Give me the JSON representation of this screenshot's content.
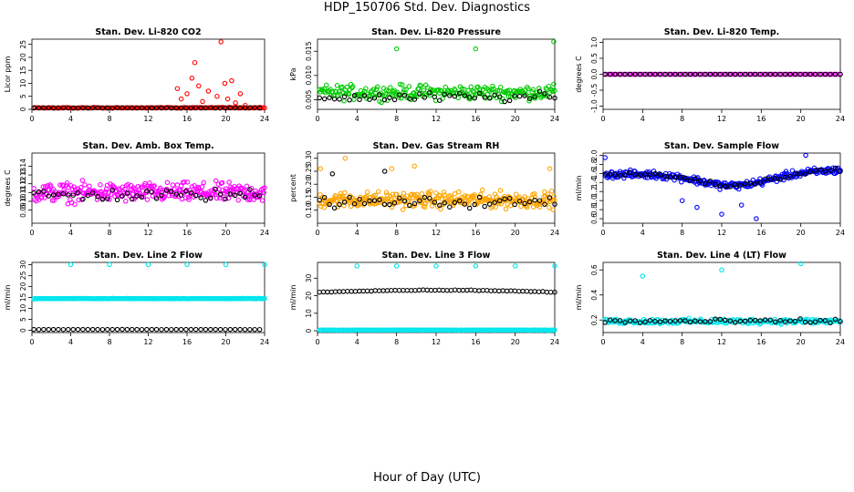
{
  "page": {
    "title": "HDP_150706  Std. Dev. Diagnostics",
    "x_title": "Hour of Day (UTC)"
  },
  "colors": {
    "red": "#ff0000",
    "green": "#00cc00",
    "magenta": "#ff00ff",
    "blue": "#0000ff",
    "orange": "#ffa500",
    "cyan": "#00e5ee",
    "black": "#000000"
  },
  "chart_data": [
    {
      "type": "scatter",
      "title": "Stan. Dev. Li-820 CO2",
      "ylabel": "Licor ppm",
      "xlim": [
        0,
        24
      ],
      "ylim": [
        0,
        27
      ],
      "x_ticks": [
        0,
        4,
        8,
        12,
        16,
        20,
        24
      ],
      "y_ticks": [
        0,
        5,
        10,
        15,
        20,
        25
      ],
      "y_tick_labels": [
        "0",
        "5",
        "10",
        "15",
        "20",
        "25"
      ],
      "series": [
        {
          "color": "red",
          "pattern": "baseline",
          "base": 0.5,
          "noise": 0.35,
          "count": 150,
          "spikes": [
            [
              15.0,
              8
            ],
            [
              15.4,
              4
            ],
            [
              16.0,
              6
            ],
            [
              16.5,
              12
            ],
            [
              16.8,
              18
            ],
            [
              17.2,
              9
            ],
            [
              17.6,
              3
            ],
            [
              18.2,
              7
            ],
            [
              19.1,
              5
            ],
            [
              19.5,
              26
            ],
            [
              19.9,
              10
            ],
            [
              20.2,
              4
            ],
            [
              20.6,
              11
            ],
            [
              21.0,
              2.5
            ],
            [
              21.5,
              6
            ],
            [
              22.0,
              1.5
            ]
          ]
        },
        {
          "color": "black",
          "pattern": "baseline",
          "base": 0.5,
          "noise": 0.2,
          "count": 48
        }
      ]
    },
    {
      "type": "scatter",
      "title": "Stan. Dev. Li-820 Pressure",
      "ylabel": "kPa",
      "xlim": [
        0,
        24
      ],
      "ylim": [
        0.003,
        0.0175
      ],
      "x_ticks": [
        0,
        4,
        8,
        12,
        16,
        20,
        24
      ],
      "y_ticks": [
        0.005,
        0.01,
        0.015
      ],
      "y_tick_labels": [
        "0.005",
        "0.010",
        "0.015"
      ],
      "series": [
        {
          "color": "green",
          "pattern": "band",
          "base": 0.0065,
          "noise": 0.0022,
          "count": 240,
          "spikes": [
            [
              8.0,
              0.0155
            ],
            [
              16.0,
              0.0155
            ],
            [
              23.9,
              0.017
            ]
          ]
        },
        {
          "color": "black",
          "pattern": "band",
          "base": 0.0055,
          "noise": 0.0015,
          "count": 48
        }
      ]
    },
    {
      "type": "scatter",
      "title": "Stan. Dev. Li-820 Temp.",
      "ylabel": "degrees C",
      "xlim": [
        0,
        24
      ],
      "ylim": [
        -1.1,
        1.1
      ],
      "x_ticks": [
        0,
        4,
        8,
        12,
        16,
        20,
        24
      ],
      "y_ticks": [
        -1.0,
        -0.5,
        0.0,
        0.5,
        1.0
      ],
      "y_tick_labels": [
        "-1.0",
        "-0.5",
        "0.0",
        "0.5",
        "1.0"
      ],
      "series": [
        {
          "color": "magenta",
          "pattern": "flat",
          "base": 0.0,
          "noise": 0,
          "count": 130
        },
        {
          "color": "black",
          "pattern": "flat",
          "base": 0.0,
          "noise": 0,
          "count": 48
        }
      ]
    },
    {
      "type": "scatter",
      "title": "Stan. Dev. Amb. Box Temp.",
      "ylabel": "degrees C",
      "xlim": [
        0,
        24
      ],
      "ylim": [
        0.075,
        0.155
      ],
      "x_ticks": [
        0,
        4,
        8,
        12,
        16,
        20,
        24
      ],
      "y_ticks": [
        0.09,
        0.1,
        0.11,
        0.12,
        0.13,
        0.14
      ],
      "y_tick_labels": [
        "0.09",
        "0.10",
        "0.11",
        "0.12",
        "0.13",
        "0.14"
      ],
      "series": [
        {
          "color": "magenta",
          "pattern": "band",
          "base": 0.11,
          "noise": 0.016,
          "count": 300
        },
        {
          "color": "black",
          "pattern": "band",
          "base": 0.107,
          "noise": 0.01,
          "count": 48
        }
      ]
    },
    {
      "type": "scatter",
      "title": "Stan. Dev. Gas Stream RH",
      "ylabel": "percent",
      "xlim": [
        0,
        24
      ],
      "ylim": [
        0.05,
        0.32
      ],
      "x_ticks": [
        0,
        4,
        8,
        12,
        16,
        20,
        24
      ],
      "y_ticks": [
        0.1,
        0.15,
        0.2,
        0.25,
        0.3
      ],
      "y_tick_labels": [
        "0.10",
        "0.15",
        "0.20",
        "0.25",
        "0.30"
      ],
      "series": [
        {
          "color": "orange",
          "pattern": "band",
          "base": 0.14,
          "noise": 0.045,
          "count": 300,
          "spikes": [
            [
              2.8,
              0.3
            ],
            [
              0.3,
              0.26
            ],
            [
              7.5,
              0.26
            ],
            [
              23.5,
              0.26
            ],
            [
              9.8,
              0.27
            ]
          ]
        },
        {
          "color": "black",
          "pattern": "band",
          "base": 0.13,
          "noise": 0.03,
          "count": 48,
          "spikes": [
            [
              1.5,
              0.24
            ],
            [
              6.8,
              0.25
            ]
          ]
        }
      ]
    },
    {
      "type": "scatter",
      "title": "Stan. Dev. Sample Flow",
      "ylabel": "ml/min",
      "xlim": [
        0,
        24
      ],
      "ylim": [
        0.5,
        2.05
      ],
      "x_ticks": [
        0,
        4,
        8,
        12,
        16,
        20,
        24
      ],
      "y_ticks": [
        0.6,
        0.8,
        1.0,
        1.2,
        1.4,
        1.6,
        1.8,
        2.0
      ],
      "y_tick_labels": [
        "0.6",
        "0.8",
        "1.0",
        "1.2",
        "1.4",
        "1.6",
        "1.8",
        "2.0"
      ],
      "series": [
        {
          "color": "blue",
          "pattern": "sampleflow",
          "base": 1.5,
          "noise": 0.12,
          "count": 300,
          "spikes": [
            [
              8.0,
              1.0
            ],
            [
              9.5,
              0.85
            ],
            [
              12.0,
              0.7
            ],
            [
              14.0,
              0.9
            ],
            [
              15.5,
              0.6
            ],
            [
              20.5,
              2.0
            ],
            [
              0.2,
              1.95
            ]
          ]
        },
        {
          "color": "black",
          "pattern": "sampleflow",
          "base": 1.5,
          "noise": 0.07,
          "count": 48
        }
      ]
    },
    {
      "type": "scatter",
      "title": "Stan. Dev. Line 2 Flow",
      "ylabel": "ml/min",
      "xlim": [
        0,
        24
      ],
      "ylim": [
        -1,
        31
      ],
      "x_ticks": [
        0,
        4,
        8,
        12,
        16,
        20,
        24
      ],
      "y_ticks": [
        0,
        5,
        10,
        15,
        20,
        25,
        30
      ],
      "y_tick_labels": [
        "0",
        "5",
        "10",
        "15",
        "20",
        "25",
        "30"
      ],
      "series": [
        {
          "color": "cyan",
          "pattern": "flat",
          "base": 14.5,
          "noise": 0.15,
          "count": 220,
          "spikes": [
            [
              4.0,
              30
            ],
            [
              8.0,
              30
            ],
            [
              12.0,
              30
            ],
            [
              16.0,
              30
            ],
            [
              20.0,
              30
            ],
            [
              24.0,
              30
            ]
          ]
        },
        {
          "color": "black",
          "pattern": "flat",
          "base": 0.4,
          "noise": 0.05,
          "count": 48
        }
      ]
    },
    {
      "type": "scatter",
      "title": "Stan. Dev. Line 3 Flow",
      "ylabel": "ml/min",
      "xlim": [
        0,
        24
      ],
      "ylim": [
        -1,
        39
      ],
      "x_ticks": [
        0,
        4,
        8,
        12,
        16,
        20,
        24
      ],
      "y_ticks": [
        0,
        10,
        20,
        30
      ],
      "y_tick_labels": [
        "0",
        "10",
        "20",
        "30"
      ],
      "series": [
        {
          "color": "cyan",
          "pattern": "flat",
          "base": 0.4,
          "noise": 0.15,
          "count": 200,
          "spikes": [
            [
              4.0,
              37
            ],
            [
              8.0,
              37
            ],
            [
              12.0,
              37
            ],
            [
              16.0,
              37
            ],
            [
              20.0,
              37
            ],
            [
              24.0,
              37
            ]
          ]
        },
        {
          "color": "black",
          "pattern": "arch",
          "base": 22,
          "noise": 0.25,
          "count": 60
        }
      ]
    },
    {
      "type": "scatter",
      "title": "Stan. Dev. Line 4 (LT) Flow",
      "ylabel": "ml/min",
      "xlim": [
        0,
        24
      ],
      "ylim": [
        0.1,
        0.66
      ],
      "x_ticks": [
        0,
        4,
        8,
        12,
        16,
        20,
        24
      ],
      "y_ticks": [
        0.2,
        0.4,
        0.6
      ],
      "y_tick_labels": [
        "0.2",
        "0.4",
        "0.6"
      ],
      "series": [
        {
          "color": "cyan",
          "pattern": "band",
          "base": 0.19,
          "noise": 0.03,
          "count": 220,
          "spikes": [
            [
              4.0,
              0.55
            ],
            [
              12.0,
              0.6
            ],
            [
              20.0,
              0.65
            ]
          ]
        },
        {
          "color": "black",
          "pattern": "band",
          "base": 0.19,
          "noise": 0.025,
          "count": 48
        }
      ]
    }
  ]
}
